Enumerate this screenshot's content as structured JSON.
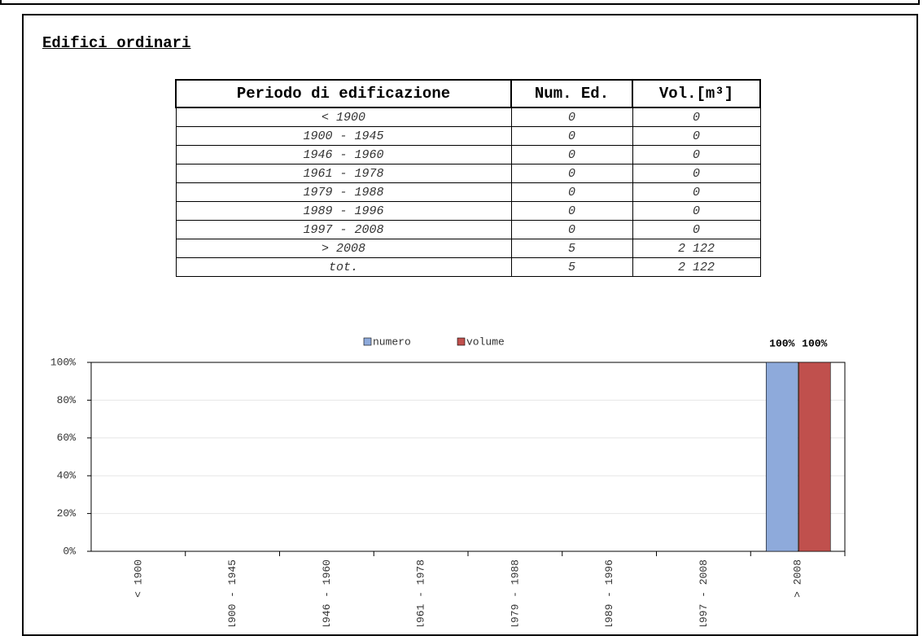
{
  "title": "Edifici ordinari",
  "table": {
    "header": [
      "Periodo di edificazione",
      "Num. Ed.",
      "Vol.[m³]"
    ],
    "rows": [
      [
        "< 1900",
        "0",
        "0"
      ],
      [
        "1900 - 1945",
        "0",
        "0"
      ],
      [
        "1946 - 1960",
        "0",
        "0"
      ],
      [
        "1961 - 1978",
        "0",
        "0"
      ],
      [
        "1979 - 1988",
        "0",
        "0"
      ],
      [
        "1989 - 1996",
        "0",
        "0"
      ],
      [
        "1997 - 2008",
        "0",
        "0"
      ],
      [
        "> 2008",
        "5",
        "2 122"
      ],
      [
        "tot.",
        "5",
        "2 122"
      ]
    ]
  },
  "chart_data": {
    "type": "bar",
    "categories": [
      "< 1900",
      "1900 - 1945",
      "1946 - 1960",
      "1961 - 1978",
      "1979 - 1988",
      "1989 - 1996",
      "1997 - 2008",
      "> 2008"
    ],
    "series": [
      {
        "name": "numero",
        "color": "#8eaadb",
        "values": [
          0,
          0,
          0,
          0,
          0,
          0,
          0,
          100
        ],
        "value_labels": [
          null,
          null,
          null,
          null,
          null,
          null,
          null,
          "100%"
        ]
      },
      {
        "name": "volume",
        "color": "#c0504d",
        "values": [
          0,
          0,
          0,
          0,
          0,
          0,
          0,
          100
        ],
        "value_labels": [
          null,
          null,
          null,
          null,
          null,
          null,
          null,
          "100%"
        ]
      }
    ],
    "ylim": [
      0,
      100
    ],
    "yticks": [
      {
        "value": 0,
        "label": "0%"
      },
      {
        "value": 20,
        "label": "20%"
      },
      {
        "value": 40,
        "label": "40%"
      },
      {
        "value": 60,
        "label": "60%"
      },
      {
        "value": 80,
        "label": "80%"
      },
      {
        "value": 100,
        "label": "100%"
      }
    ],
    "grid": true,
    "legend": "top"
  }
}
